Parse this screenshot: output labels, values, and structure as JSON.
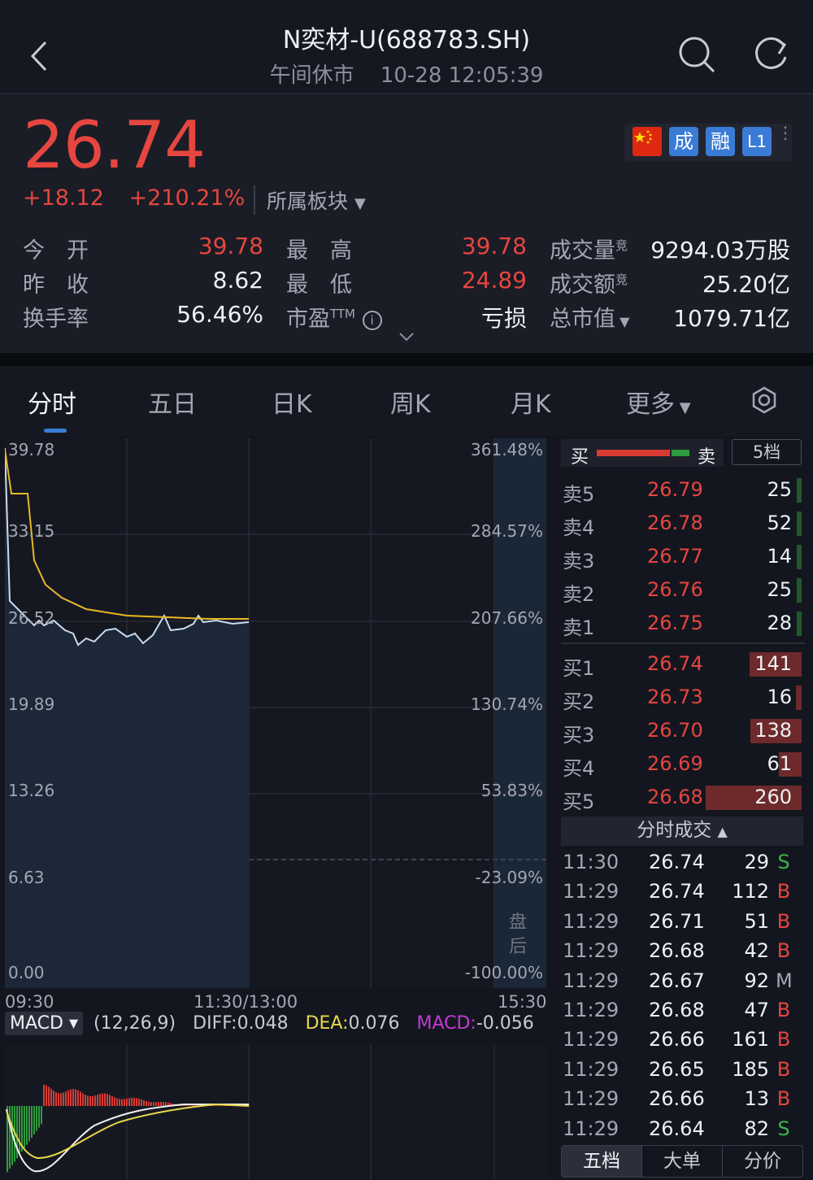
{
  "header": {
    "title": "N奕材-U(688783.SH)",
    "status": "午间休市",
    "datetime": "10-28 12:05:39"
  },
  "quote": {
    "price": "26.74",
    "change": "+18.12",
    "change_pct": "+210.21%",
    "sector_label": "所属板块",
    "badges": [
      "成",
      "融",
      "L1"
    ],
    "stats": {
      "open_label": "今　开",
      "open": "39.78",
      "high_label": "最　高",
      "high": "39.78",
      "volume_label": "成交量",
      "volume": "9294.03万股",
      "prev_close_label": "昨　收",
      "prev_close": "8.62",
      "low_label": "最　低",
      "low": "24.89",
      "amount_label": "成交额",
      "amount": "25.20亿",
      "turnover_label": "换手率",
      "turnover": "56.46%",
      "pe_label": "市盈",
      "pe_sup": "TTM",
      "pe": "亏损",
      "mcap_label": "总市值",
      "mcap": "1079.71亿",
      "volume_sup": "竞",
      "amount_sup": "竞"
    }
  },
  "tabs": [
    "分时",
    "五日",
    "日K",
    "周K",
    "月K",
    "更多"
  ],
  "chart": {
    "left_axis": [
      "39.78",
      "33.15",
      "26.52",
      "19.89",
      "13.26",
      "6.63",
      "0.00"
    ],
    "right_axis": [
      "361.48%",
      "284.57%",
      "207.66%",
      "130.74%",
      "53.83%",
      "-23.09%",
      "-100.00%"
    ],
    "time_axis": [
      "09:30",
      "11:30/13:00",
      "15:30"
    ],
    "after_hours_label": "盘后",
    "macd": {
      "name": "MACD",
      "params": "(12,26,9)",
      "diff_label": "DIFF:",
      "diff": "0.048",
      "dea_label": "DEA:",
      "dea": "0.076",
      "macd_label": "MACD:",
      "macd": "-0.056"
    }
  },
  "orderbook": {
    "buy_label": "买",
    "sell_label": "卖",
    "depth_button": "5档",
    "asks": [
      {
        "label": "卖5",
        "price": "26.79",
        "vol": "25"
      },
      {
        "label": "卖4",
        "price": "26.78",
        "vol": "52"
      },
      {
        "label": "卖3",
        "price": "26.77",
        "vol": "14"
      },
      {
        "label": "卖2",
        "price": "26.76",
        "vol": "25"
      },
      {
        "label": "卖1",
        "price": "26.75",
        "vol": "28"
      }
    ],
    "bids": [
      {
        "label": "买1",
        "price": "26.74",
        "vol": "141"
      },
      {
        "label": "买2",
        "price": "26.73",
        "vol": "16"
      },
      {
        "label": "买3",
        "price": "26.70",
        "vol": "138"
      },
      {
        "label": "买4",
        "price": "26.69",
        "vol": "61"
      },
      {
        "label": "买5",
        "price": "26.68",
        "vol": "260"
      }
    ]
  },
  "trades": {
    "title": "分时成交",
    "rows": [
      {
        "time": "11:30",
        "price": "26.74",
        "vol": "29",
        "side": "S"
      },
      {
        "time": "11:29",
        "price": "26.74",
        "vol": "112",
        "side": "B"
      },
      {
        "time": "11:29",
        "price": "26.71",
        "vol": "51",
        "side": "B"
      },
      {
        "time": "11:29",
        "price": "26.68",
        "vol": "42",
        "side": "B"
      },
      {
        "time": "11:29",
        "price": "26.67",
        "vol": "92",
        "side": "M"
      },
      {
        "time": "11:29",
        "price": "26.68",
        "vol": "47",
        "side": "B"
      },
      {
        "time": "11:29",
        "price": "26.66",
        "vol": "161",
        "side": "B"
      },
      {
        "time": "11:29",
        "price": "26.65",
        "vol": "185",
        "side": "B"
      },
      {
        "time": "11:29",
        "price": "26.66",
        "vol": "13",
        "side": "B"
      },
      {
        "time": "11:29",
        "price": "26.64",
        "vol": "82",
        "side": "S"
      }
    ]
  },
  "bottom_tabs": [
    "五档",
    "大单",
    "分价"
  ],
  "colors": {
    "up": "#e5463f",
    "down": "#3ab54a",
    "accent": "#3a7bd5",
    "price_line": "#c9dcf0",
    "avg_line": "#e8b923"
  }
}
